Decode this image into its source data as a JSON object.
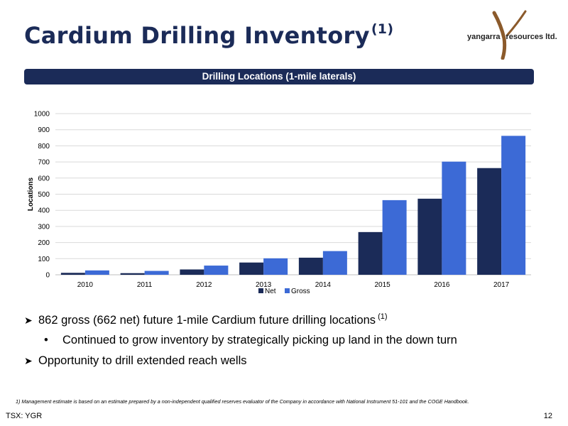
{
  "page": {
    "title": "Cardium Drilling Inventory",
    "title_superscript": "(1)",
    "banner": "Drilling Locations (1-mile laterals)",
    "logo": {
      "left_text": "yangarra",
      "right_text": "resources ltd.",
      "brand_color": "#8b5a2b"
    },
    "bullets": [
      {
        "icon": "arrow-bullet-icon",
        "text": "862 gross (662 net) future 1-mile Cardium future drilling locations",
        "superscript": "(1)"
      },
      {
        "icon": "dot-bullet-icon",
        "text": "Continued to grow inventory by strategically picking up land in the down turn"
      },
      {
        "icon": "arrow-bullet-icon",
        "text": "Opportunity to drill extended reach wells"
      }
    ],
    "footnote": "1) Management estimate is based on an estimate prepared by a non-independent qualified reserves evaluator of the Company in accordance with National Instrument 51-101 and the COGE Handbook.",
    "ticker": "TSX: YGR",
    "page_number": "12",
    "colors": {
      "navy": "#1b2b58",
      "net": "#1b2b58",
      "gross": "#3c6ad6"
    }
  },
  "chart_data": {
    "type": "bar",
    "categories": [
      "2010",
      "2011",
      "2012",
      "2013",
      "2014",
      "2015",
      "2016",
      "2017"
    ],
    "series": [
      {
        "name": "Net",
        "values": [
          12,
          10,
          33,
          76,
          106,
          265,
          472,
          662
        ],
        "color": "#1b2b58"
      },
      {
        "name": "Gross",
        "values": [
          27,
          24,
          57,
          102,
          147,
          463,
          702,
          862
        ],
        "color": "#3c6ad6"
      }
    ],
    "title": "",
    "xlabel": "",
    "ylabel": "Locations",
    "ylim": [
      0,
      1000
    ],
    "yticks": [
      0,
      100,
      200,
      300,
      400,
      500,
      600,
      700,
      800,
      900,
      1000
    ],
    "grid": true,
    "legend": "bottom-center"
  }
}
